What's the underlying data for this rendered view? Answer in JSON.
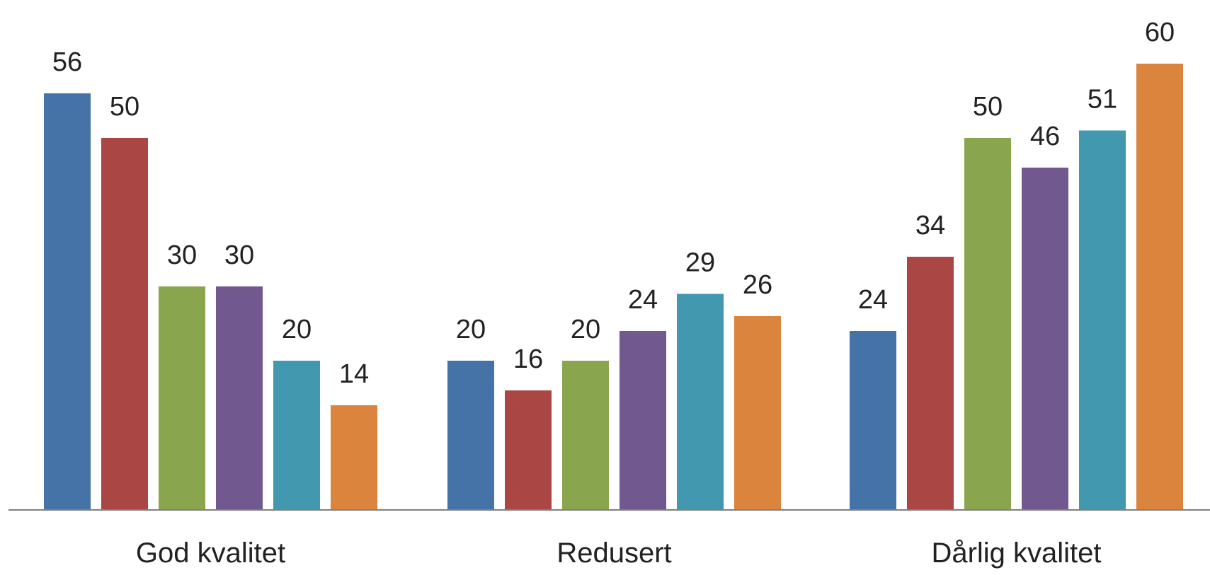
{
  "chart_data": {
    "type": "bar",
    "categories": [
      "God kvalitet",
      "Redusert",
      "Dårlig kvalitet"
    ],
    "series": [
      {
        "color": "#4572a7",
        "values": [
          56,
          20,
          24
        ]
      },
      {
        "color": "#aa4643",
        "values": [
          50,
          16,
          34
        ]
      },
      {
        "color": "#89a54e",
        "values": [
          30,
          20,
          50
        ]
      },
      {
        "color": "#71588f",
        "values": [
          30,
          24,
          46
        ]
      },
      {
        "color": "#4198af",
        "values": [
          20,
          29,
          51
        ]
      },
      {
        "color": "#db843d",
        "values": [
          14,
          26,
          60
        ]
      }
    ],
    "ylim": [
      0,
      60
    ],
    "grid": false,
    "legend": "none",
    "axis_color": "#7f7f7f"
  }
}
